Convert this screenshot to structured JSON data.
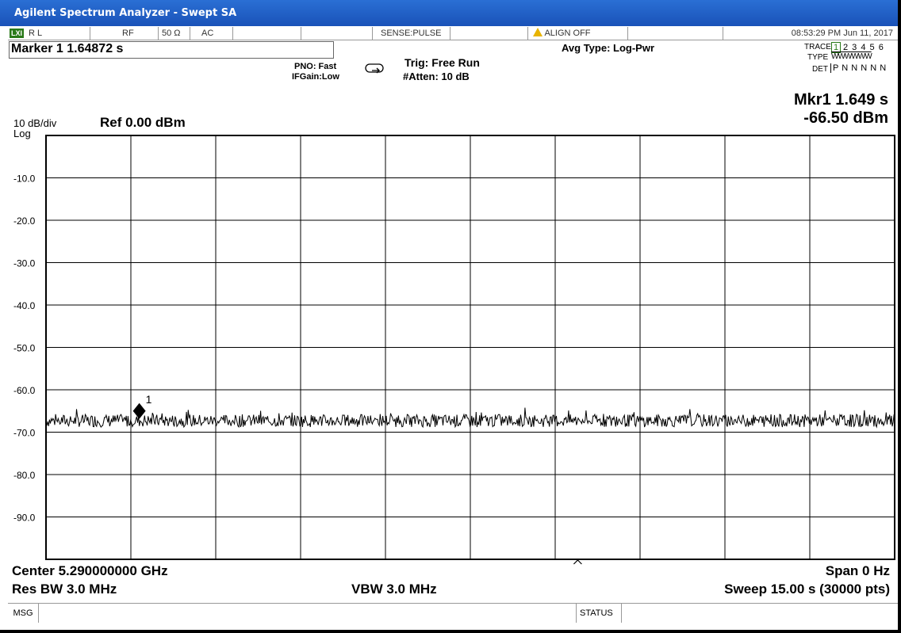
{
  "window": {
    "title": "Agilent Spectrum Analyzer - Swept SA"
  },
  "status_bar": {
    "lxi": "LXI",
    "rl": "R L",
    "rf": "RF",
    "impedance": "50 Ω",
    "coupling": "AC",
    "sense": "SENSE:PULSE",
    "align": "ALIGN OFF",
    "datetime": "08:53:29 PM Jun 11, 2017"
  },
  "marker_readout": "Marker 1 1.64872 s",
  "settings": {
    "pno": "PNO: Fast",
    "ifgain": "IFGain:Low",
    "trig": "Trig: Free Run",
    "atten": "#Atten: 10 dB",
    "avg_type": "Avg Type: Log-Pwr"
  },
  "trace_panel": {
    "trace_label": "TRACE",
    "trace_numbers": "2 3 4 5 6",
    "trace_active": "1",
    "type_label": "TYPE",
    "type_value": "WWWWWW",
    "det_label": "DET",
    "det_value": "P N N N N N"
  },
  "mkr_result": {
    "time": "Mkr1 1.649 s",
    "level": "-66.50 dBm"
  },
  "scale": {
    "div": "10 dB/div",
    "mode": "Log",
    "ref": "Ref 0.00 dBm"
  },
  "bottom": {
    "center": "Center 5.290000000 GHz",
    "span": "Span 0 Hz",
    "res_bw": "Res BW 3.0 MHz",
    "vbw": "VBW 3.0 MHz",
    "sweep": "Sweep  15.00 s (30000 pts)"
  },
  "msg_bar": {
    "msg": "MSG",
    "status": "STATUS"
  },
  "chart_data": {
    "type": "line",
    "ylim": [
      -100,
      0
    ],
    "xlim": [
      0,
      15
    ],
    "xlabel": "",
    "ylabel": "",
    "y_ticks": [
      "-10.0",
      "-20.0",
      "-30.0",
      "-40.0",
      "-50.0",
      "-60.0",
      "-70.0",
      "-80.0",
      "-90.0"
    ],
    "grid": true,
    "series": [
      {
        "noise_floor_dbm": -67.3,
        "noise_peak_to_peak_db": 3
      }
    ],
    "marker": {
      "label": "1",
      "x": 1.649,
      "y": -66.5
    }
  }
}
